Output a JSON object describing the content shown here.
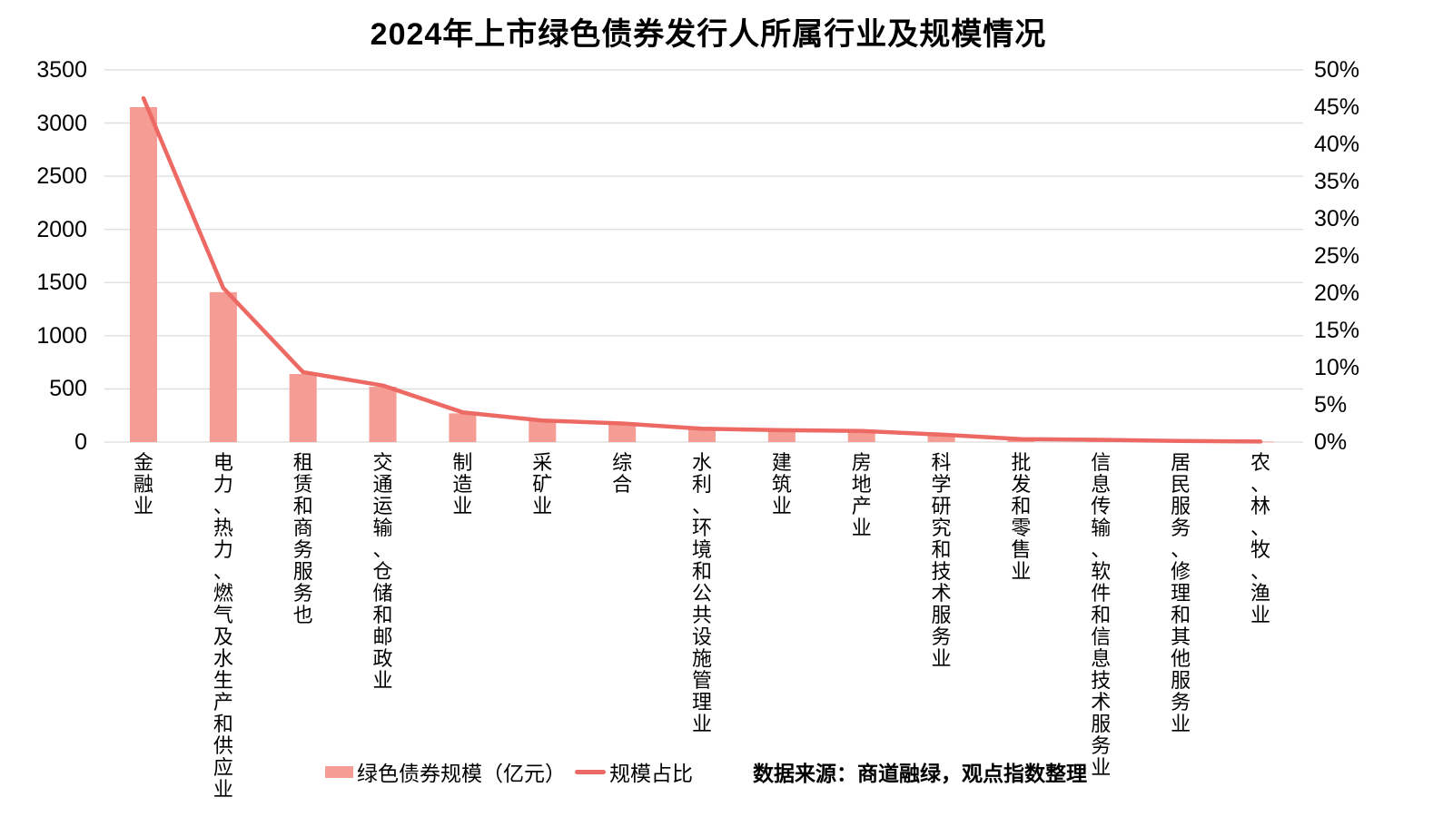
{
  "title": "2024年上市绿色债券发行人所属行业及规模情况",
  "legend": {
    "bar_label": "绿色债券规模（亿元）",
    "line_label": "规模占比"
  },
  "source": "数据来源：商道融绿，观点指数整理",
  "colors": {
    "bar": "#F59C95",
    "line": "#ED6963",
    "grid": "#DCDCDC",
    "text": "#000000",
    "background": "#FFFFFF"
  },
  "chart_data": {
    "type": "bar",
    "subtype": "bar+line combo, dual axis",
    "title": "2024年上市绿色债券发行人所属行业及规模情况",
    "grid": true,
    "legend_position": "bottom",
    "categories": [
      "金融业",
      "电力、热力、燃气及水生产和供应业",
      "租赁和商务服务也",
      "交通运输、仓储和邮政业",
      "制造业",
      "采矿业",
      "综合",
      "水利、环境和公共设施管理业",
      "建筑业",
      "房地产业",
      "科学研究和技术服务业",
      "批发和零售业",
      "信息传输、软件和信息技术服务业",
      "居民服务、修理和其他服务业",
      "农、林、牧、渔业"
    ],
    "series": [
      {
        "name": "绿色债券规模（亿元）",
        "type": "bar",
        "axis": "left",
        "values": [
          3150,
          1410,
          640,
          520,
          270,
          200,
          170,
          120,
          110,
          100,
          65,
          25,
          20,
          10,
          5
        ]
      },
      {
        "name": "规模占比",
        "type": "line",
        "axis": "right",
        "unit": "%",
        "values": [
          46.2,
          20.7,
          9.4,
          7.6,
          4.0,
          2.9,
          2.5,
          1.8,
          1.6,
          1.5,
          1.0,
          0.4,
          0.3,
          0.15,
          0.07
        ]
      }
    ],
    "left_axis": {
      "min": 0,
      "max": 3500,
      "step": 500,
      "ticks": [
        "0",
        "500",
        "1000",
        "1500",
        "2000",
        "2500",
        "3000",
        "3500"
      ]
    },
    "right_axis": {
      "min": 0,
      "max": 50,
      "step": 5,
      "ticks": [
        "0%",
        "5%",
        "10%",
        "15%",
        "20%",
        "25%",
        "30%",
        "35%",
        "40%",
        "45%",
        "50%"
      ]
    }
  }
}
